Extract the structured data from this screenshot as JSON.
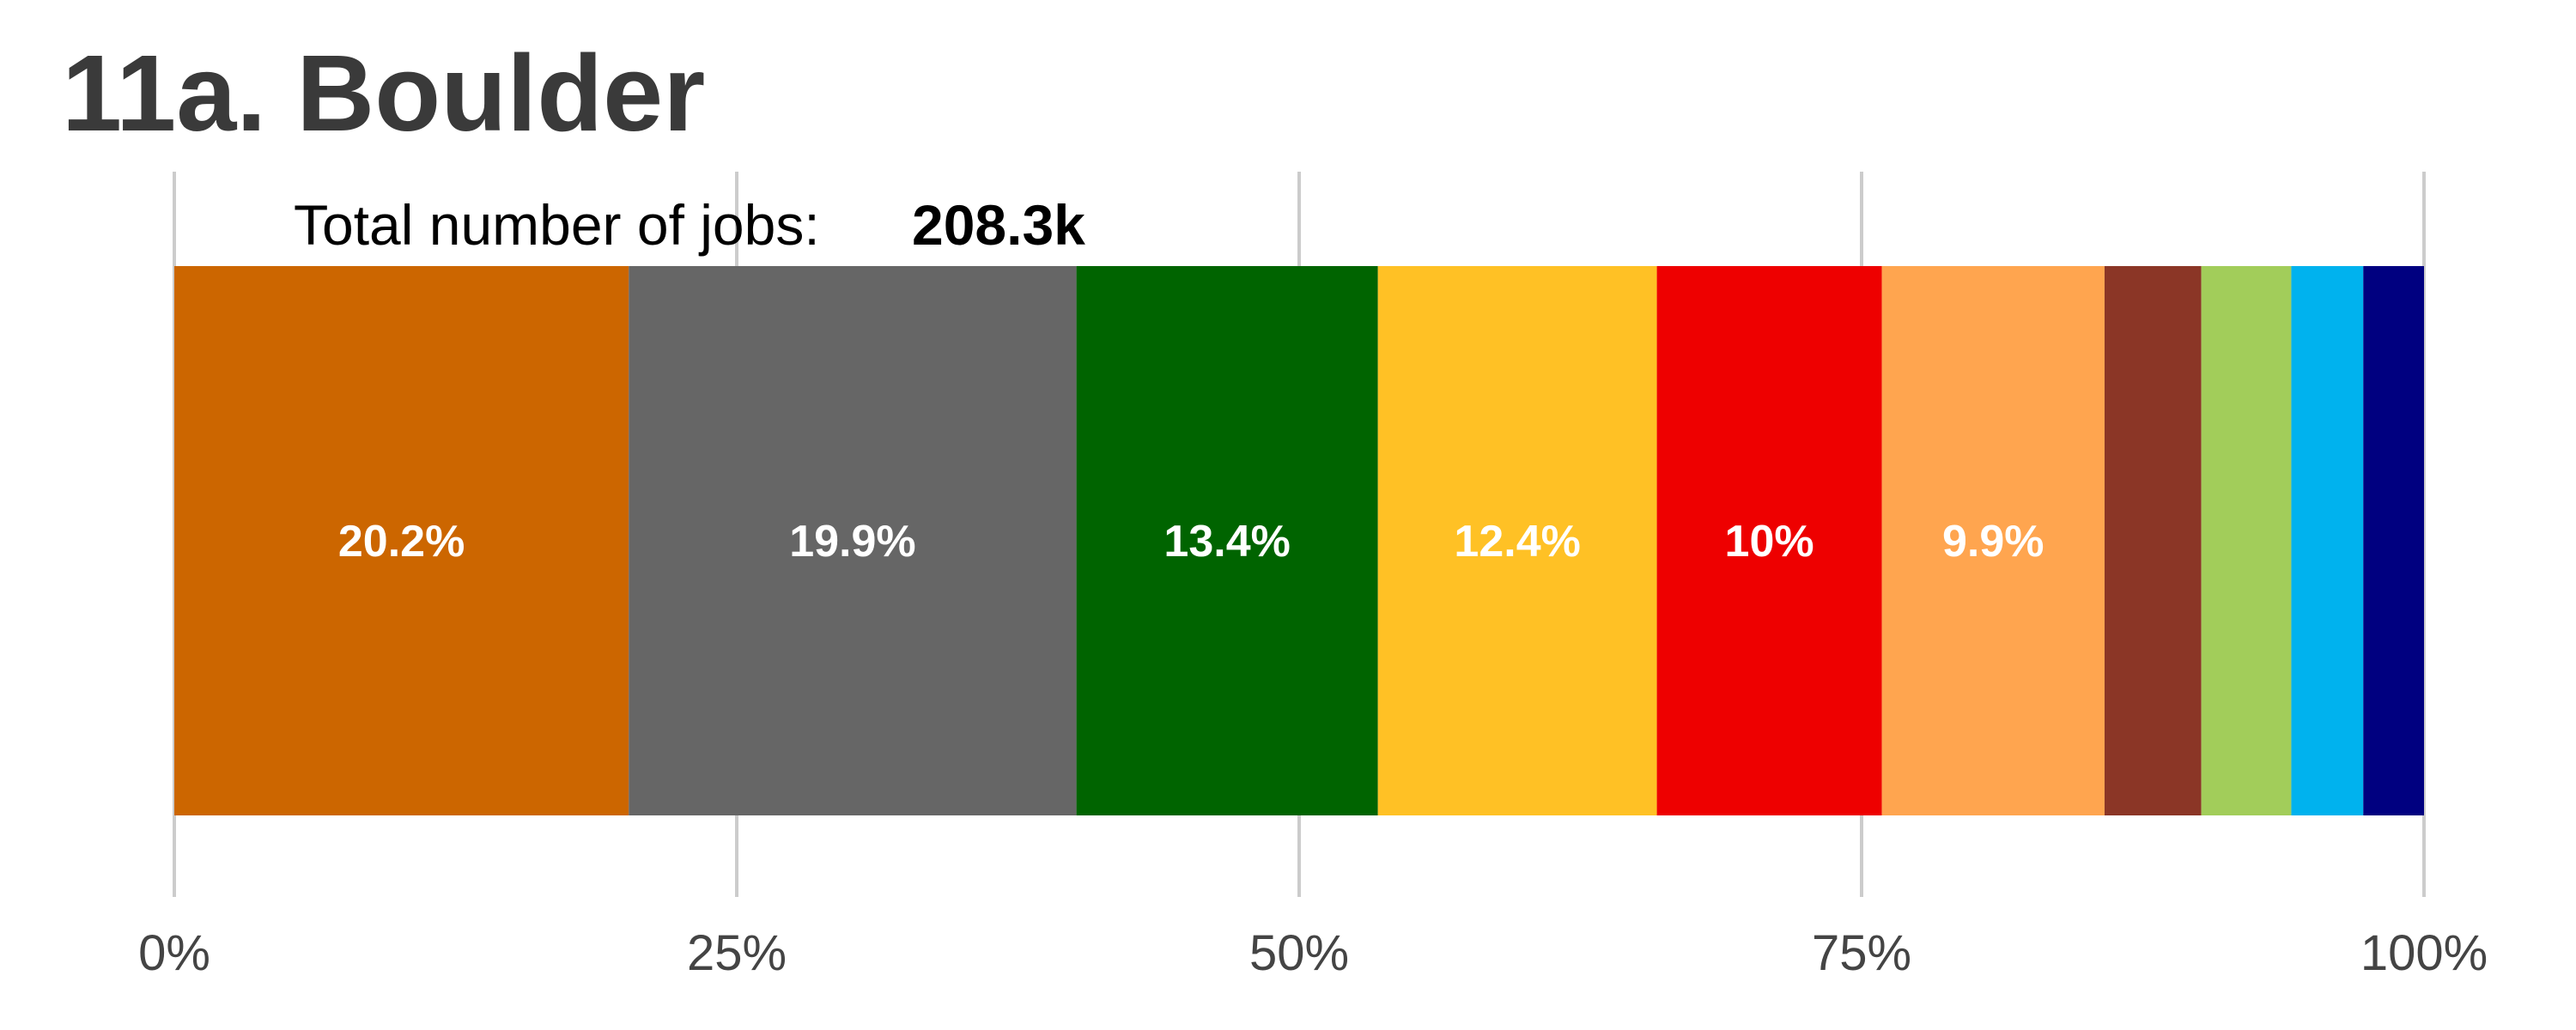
{
  "chart_data": {
    "type": "bar",
    "orientation": "horizontal-stacked",
    "title": "11a. Boulder",
    "annotation": {
      "label": "Total number of jobs:",
      "value": "208.3k"
    },
    "xlim": [
      0,
      100
    ],
    "xticks": [
      0,
      25,
      50,
      75,
      100
    ],
    "xtick_labels": [
      "0%",
      "25%",
      "50%",
      "75%",
      "100%"
    ],
    "grid": "vertical",
    "segments": [
      {
        "value": 20.2,
        "label": "20.2%",
        "color": "#CC6600"
      },
      {
        "value": 19.9,
        "label": "19.9%",
        "color": "#666666"
      },
      {
        "value": 13.4,
        "label": "13.4%",
        "color": "#006400"
      },
      {
        "value": 12.4,
        "label": "12.4%",
        "color": "#FFC125"
      },
      {
        "value": 10.0,
        "label": "10%",
        "color": "#EE0000"
      },
      {
        "value": 9.9,
        "label": "9.9%",
        "color": "#FFA54F"
      },
      {
        "value": 4.3,
        "label": "",
        "color": "#8B3626"
      },
      {
        "value": 4.0,
        "label": "",
        "color": "#A2CD5A"
      },
      {
        "value": 3.2,
        "label": "",
        "color": "#00B2EE"
      },
      {
        "value": 2.7,
        "label": "",
        "color": "#000080"
      }
    ]
  }
}
